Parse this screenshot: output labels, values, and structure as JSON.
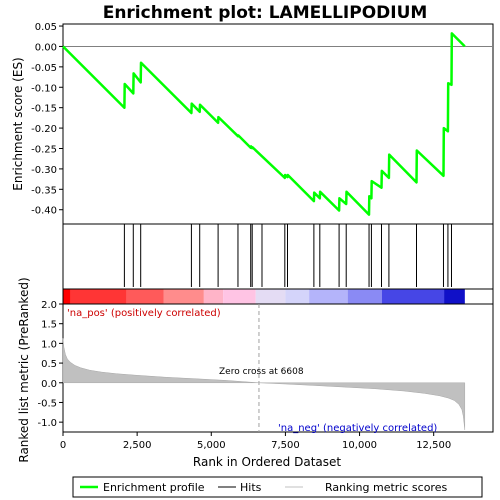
{
  "chart_data": {
    "type": "line",
    "title": "Enrichment plot: LAMELLIPODIUM",
    "xlabel": "Rank in Ordered Dataset",
    "xlim": [
      0,
      14500
    ],
    "x_ticks": [
      0,
      2500,
      5000,
      7500,
      10000,
      12500
    ],
    "x_tick_labels": [
      "0",
      "2,500",
      "5,000",
      "7,500",
      "10,000",
      "12,500"
    ],
    "top_panel": {
      "ylabel": "Enrichment score (ES)",
      "ylim": [
        -0.435,
        0.055
      ],
      "y_ticks": [
        0.05,
        0.0,
        -0.05,
        -0.1,
        -0.15,
        -0.2,
        -0.25,
        -0.3,
        -0.35,
        -0.4
      ],
      "y_tick_labels": [
        "0.05",
        "0.00",
        "-0.05",
        "-0.10",
        "-0.15",
        "-0.20",
        "-0.25",
        "-0.30",
        "-0.35",
        "-0.40"
      ],
      "series": [
        {
          "name": "Enrichment profile",
          "color": "#00ff00",
          "x": [
            0,
            2070,
            2080,
            2370,
            2380,
            2620,
            2630,
            4330,
            4340,
            4610,
            4620,
            5230,
            5240,
            5900,
            5910,
            6330,
            6340,
            6380,
            6390,
            7480,
            7490,
            7570,
            7580,
            8460,
            8470,
            8660,
            8670,
            9310,
            9320,
            9550,
            9560,
            10320,
            10330,
            10400,
            10410,
            10740,
            10750,
            10990,
            11000,
            11920,
            11930,
            12830,
            12840,
            12980,
            12990,
            13100,
            13110,
            13550
          ],
          "y": [
            0.0,
            -0.15,
            -0.092,
            -0.115,
            -0.066,
            -0.088,
            -0.04,
            -0.163,
            -0.14,
            -0.16,
            -0.143,
            -0.187,
            -0.173,
            -0.22,
            -0.218,
            -0.248,
            -0.245,
            -0.249,
            -0.247,
            -0.322,
            -0.315,
            -0.32,
            -0.315,
            -0.379,
            -0.358,
            -0.372,
            -0.356,
            -0.402,
            -0.372,
            -0.386,
            -0.356,
            -0.412,
            -0.367,
            -0.372,
            -0.33,
            -0.346,
            -0.305,
            -0.322,
            -0.265,
            -0.333,
            -0.255,
            -0.317,
            -0.2,
            -0.208,
            -0.09,
            -0.094,
            0.032,
            0.0
          ]
        }
      ],
      "zero_line": 0.0
    },
    "hits": {
      "name": "Hits",
      "color": "#000000",
      "x": [
        2070,
        2370,
        2620,
        4330,
        4610,
        5230,
        5900,
        6330,
        6380,
        6710,
        7480,
        7570,
        8460,
        8660,
        9310,
        9550,
        10320,
        10400,
        10740,
        10990,
        11920,
        12830,
        12980,
        13100
      ]
    },
    "color_bar": {
      "segments": [
        {
          "from": 0,
          "to": 250,
          "color": "#ff0000"
        },
        {
          "from": 250,
          "to": 2150,
          "color": "#ff3535"
        },
        {
          "from": 2150,
          "to": 3400,
          "color": "#ff5a5a"
        },
        {
          "from": 3400,
          "to": 4750,
          "color": "#ff8c8c"
        },
        {
          "from": 4750,
          "to": 5400,
          "color": "#ffb4c8"
        },
        {
          "from": 5400,
          "to": 6500,
          "color": "#ffc4e4"
        },
        {
          "from": 6500,
          "to": 7500,
          "color": "#e4dcf4"
        },
        {
          "from": 7500,
          "to": 8300,
          "color": "#d4d4fa"
        },
        {
          "from": 8300,
          "to": 9600,
          "color": "#b4b4fa"
        },
        {
          "from": 9600,
          "to": 10750,
          "color": "#8a8af4"
        },
        {
          "from": 10750,
          "to": 12850,
          "color": "#4646e6"
        },
        {
          "from": 12850,
          "to": 13550,
          "color": "#1010c8"
        }
      ]
    },
    "bottom_panel": {
      "ylabel": "Ranked list metric (PreRanked)",
      "ylim": [
        -1.25,
        2.0
      ],
      "y_ticks": [
        2.0,
        1.5,
        1.0,
        0.5,
        0.0,
        -0.5,
        -1.0
      ],
      "y_tick_labels": [
        "2.0",
        "1.5",
        "1.0",
        "0.5",
        "0.0",
        "-0.5",
        "-1.0"
      ],
      "series": [
        {
          "name": "Ranking metric scores",
          "color": "#c0c0c0",
          "x": [
            0,
            30,
            80,
            150,
            250,
            400,
            600,
            900,
            1300,
            1800,
            2500,
            3500,
            4500,
            5500,
            6608,
            7500,
            8500,
            9500,
            10500,
            11500,
            12200,
            12700,
            13000,
            13200,
            13350,
            13450,
            13500,
            13550
          ],
          "y": [
            1.13,
            0.9,
            0.72,
            0.6,
            0.52,
            0.44,
            0.38,
            0.32,
            0.27,
            0.23,
            0.19,
            0.14,
            0.1,
            0.06,
            0.0,
            -0.03,
            -0.07,
            -0.11,
            -0.15,
            -0.21,
            -0.27,
            -0.33,
            -0.39,
            -0.45,
            -0.55,
            -0.68,
            -0.85,
            -1.2
          ]
        }
      ],
      "zero_cross": 6608,
      "annotations": {
        "pos_label": "'na_pos' (positively correlated)",
        "neg_label": "'na_neg' (negatively correlated)",
        "zero_cross_label": "Zero cross at 6608"
      }
    },
    "legend": {
      "placement": "bottom",
      "entries": [
        {
          "label": "Enrichment profile",
          "color": "#00ff00"
        },
        {
          "label": "Hits",
          "color": "#000000"
        },
        {
          "label": "Ranking metric scores",
          "color": "#c0c0c0"
        }
      ]
    }
  }
}
